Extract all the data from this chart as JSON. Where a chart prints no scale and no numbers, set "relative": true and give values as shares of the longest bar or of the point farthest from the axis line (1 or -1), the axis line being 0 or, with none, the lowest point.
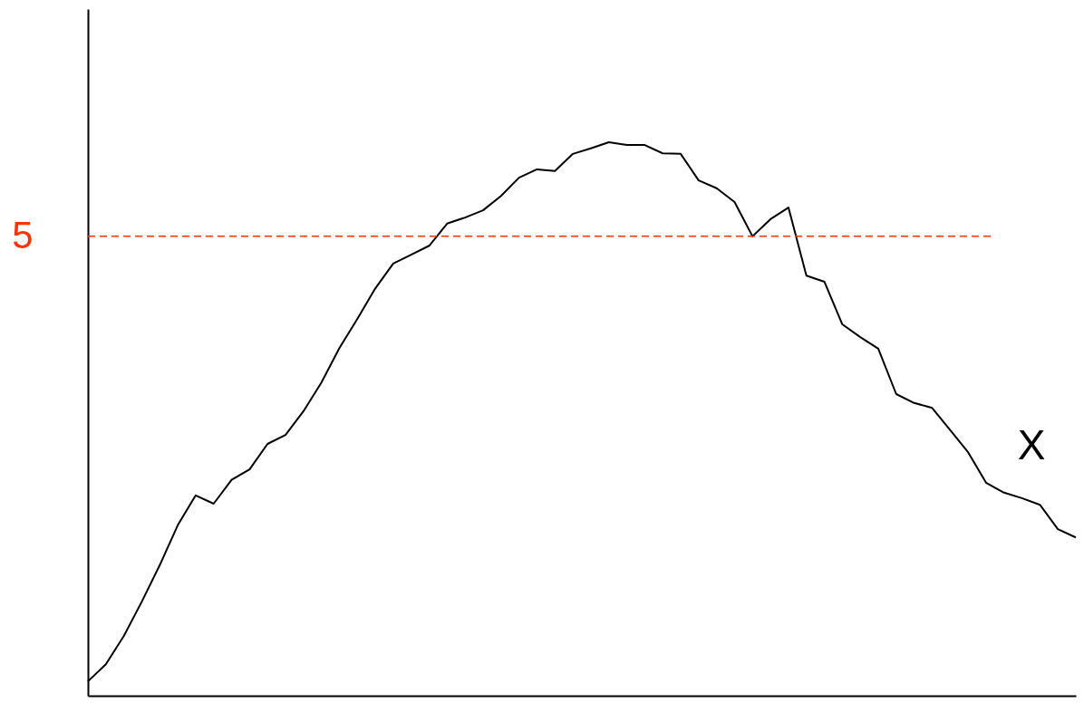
{
  "chart_data": {
    "type": "line",
    "relative": true,
    "categories": [
      null,
      null,
      null,
      null,
      null,
      null,
      null,
      null,
      null,
      null,
      null,
      null,
      null,
      null,
      null,
      null,
      null,
      null,
      null,
      null,
      null,
      null,
      null,
      null,
      null,
      null,
      null,
      null,
      null,
      null,
      null,
      null,
      null,
      null,
      null,
      null,
      null,
      null,
      null,
      null,
      null,
      null,
      null,
      null,
      null,
      null,
      null,
      null,
      null,
      null,
      null,
      null,
      null,
      null,
      null,
      null
    ],
    "series": [
      {
        "color": "#000000",
        "values": [
          0.026,
          0.057,
          0.108,
          0.17,
          0.236,
          0.308,
          0.362,
          0.347,
          0.39,
          0.409,
          0.455,
          0.471,
          0.514,
          0.566,
          0.628,
          0.681,
          0.736,
          0.781,
          0.797,
          0.813,
          0.853,
          0.864,
          0.877,
          0.903,
          0.936,
          0.951,
          0.948,
          0.979,
          0.989,
          1,
          0.995,
          0.995,
          0.98,
          0.979,
          0.931,
          0.917,
          0.892,
          0.83,
          0.861,
          0.882,
          0.759,
          0.748,
          0.671,
          0.648,
          0.627,
          0.545,
          0.529,
          0.52,
          0.48,
          0.44,
          0.385,
          0.367,
          0.357,
          0.345,
          0.301,
          0.286
        ]
      }
    ],
    "ref_lines": [
      {
        "axis": "y",
        "value": 0.83,
        "color": "#ff3300",
        "line_style": "dashed"
      }
    ],
    "annotations": [
      "5",
      "X"
    ]
  }
}
